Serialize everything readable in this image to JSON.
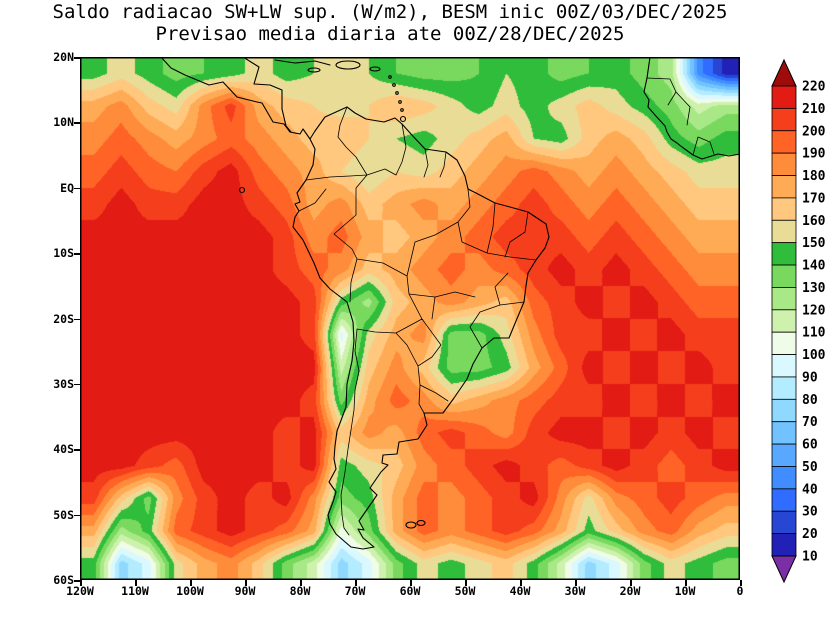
{
  "chart_data": {
    "type": "heatmap",
    "subtype": "filled-contour-map",
    "title": "Saldo radiacao SW+LW sup. (W/m2), BESM inic 00Z/03/DEC/2025",
    "subtitle": "Previsao media diaria ate 00Z/28/DEC/2025",
    "units": "W/m2",
    "lon_range_deg": [
      -120,
      0
    ],
    "lat_range_deg": [
      -60,
      20
    ],
    "x_ticks": [
      "120W",
      "110W",
      "100W",
      "90W",
      "80W",
      "70W",
      "60W",
      "50W",
      "40W",
      "30W",
      "20W",
      "10W",
      "0"
    ],
    "y_ticks": [
      "20N",
      "10N",
      "EQ",
      "10S",
      "20S",
      "30S",
      "40S",
      "50S",
      "60S"
    ],
    "legend_position": "right-vertical-colorbar-with-end-arrows",
    "levels": [
      10,
      20,
      30,
      40,
      50,
      60,
      70,
      80,
      90,
      100,
      110,
      120,
      130,
      140,
      150,
      160,
      170,
      180,
      190,
      200,
      210,
      220
    ],
    "colors": {
      "below": "#7b2fa6",
      "bands": [
        "#2121b8",
        "#2746d4",
        "#2f6cff",
        "#3f8dff",
        "#58a8ff",
        "#72c2ff",
        "#8fd9ff",
        "#b3ebff",
        "#d9f8ff",
        "#eefce8",
        "#cef2ad",
        "#a9e887",
        "#79d95f",
        "#30bd3b",
        "#e8dc96",
        "#ffc87e",
        "#ffab55",
        "#ff8c3a",
        "#ff6326",
        "#f53e1c",
        "#e21b14"
      ],
      "above": "#9e0b0b"
    },
    "grid": {
      "note": "approximate field values (W/m2) on 5-degree cells read from the plot; row 0 spans 20N-15N, row 15 spans 55S-60S; col 0 spans 120W-115W, col 23 spans 5W-0",
      "nx": 24,
      "ny": 16,
      "values": [
        [
          145,
          155,
          145,
          135,
          140,
          145,
          155,
          145,
          150,
          155,
          150,
          140,
          135,
          135,
          140,
          150,
          145,
          135,
          140,
          145,
          135,
          125,
          45,
          15
        ],
        [
          175,
          185,
          165,
          155,
          185,
          205,
          175,
          165,
          160,
          155,
          160,
          170,
          165,
          155,
          145,
          155,
          145,
          155,
          165,
          155,
          145,
          135,
          115,
          125
        ],
        [
          185,
          195,
          185,
          175,
          185,
          195,
          185,
          175,
          165,
          170,
          160,
          150,
          145,
          155,
          165,
          175,
          150,
          145,
          165,
          175,
          165,
          145,
          135,
          145
        ],
        [
          195,
          205,
          195,
          190,
          205,
          215,
          195,
          185,
          175,
          160,
          150,
          160,
          155,
          165,
          175,
          185,
          195,
          185,
          175,
          185,
          175,
          165,
          155,
          155
        ],
        [
          205,
          215,
          205,
          205,
          215,
          215,
          205,
          195,
          175,
          185,
          165,
          175,
          185,
          175,
          185,
          195,
          205,
          195,
          185,
          195,
          185,
          175,
          165,
          165
        ],
        [
          215,
          215,
          215,
          215,
          215,
          215,
          215,
          205,
          185,
          195,
          175,
          165,
          175,
          185,
          195,
          205,
          205,
          205,
          195,
          205,
          195,
          185,
          175,
          175
        ],
        [
          215,
          215,
          215,
          215,
          215,
          215,
          215,
          205,
          195,
          185,
          165,
          175,
          185,
          195,
          185,
          195,
          205,
          215,
          205,
          215,
          205,
          195,
          185,
          185
        ],
        [
          215,
          215,
          215,
          215,
          215,
          215,
          215,
          215,
          205,
          145,
          125,
          165,
          175,
          185,
          175,
          165,
          195,
          205,
          215,
          205,
          215,
          205,
          195,
          195
        ],
        [
          215,
          215,
          215,
          215,
          215,
          215,
          215,
          215,
          205,
          95,
          155,
          175,
          185,
          135,
          135,
          155,
          185,
          205,
          205,
          215,
          205,
          215,
          205,
          205
        ],
        [
          215,
          215,
          215,
          215,
          215,
          215,
          215,
          215,
          215,
          115,
          165,
          185,
          165,
          135,
          135,
          145,
          175,
          195,
          215,
          205,
          215,
          205,
          215,
          205
        ],
        [
          215,
          215,
          215,
          215,
          215,
          215,
          215,
          215,
          205,
          135,
          175,
          195,
          185,
          165,
          175,
          185,
          195,
          205,
          205,
          215,
          205,
          215,
          205,
          215
        ],
        [
          215,
          215,
          215,
          215,
          215,
          215,
          215,
          205,
          215,
          165,
          185,
          175,
          195,
          205,
          195,
          185,
          205,
          215,
          215,
          205,
          215,
          205,
          215,
          205
        ],
        [
          215,
          215,
          205,
          195,
          215,
          215,
          215,
          205,
          215,
          145,
          155,
          165,
          185,
          195,
          205,
          215,
          205,
          195,
          205,
          215,
          205,
          195,
          205,
          215
        ],
        [
          205,
          165,
          135,
          185,
          205,
          215,
          205,
          215,
          185,
          135,
          145,
          175,
          195,
          185,
          195,
          205,
          215,
          185,
          155,
          185,
          195,
          205,
          195,
          185
        ],
        [
          175,
          125,
          145,
          195,
          205,
          215,
          205,
          195,
          175,
          105,
          135,
          175,
          195,
          185,
          195,
          205,
          195,
          175,
          145,
          165,
          185,
          195,
          175,
          165
        ],
        [
          145,
          75,
          95,
          155,
          175,
          185,
          165,
          135,
          115,
          75,
          95,
          135,
          155,
          145,
          155,
          165,
          145,
          115,
          75,
          95,
          135,
          155,
          145,
          135
        ]
      ]
    }
  }
}
